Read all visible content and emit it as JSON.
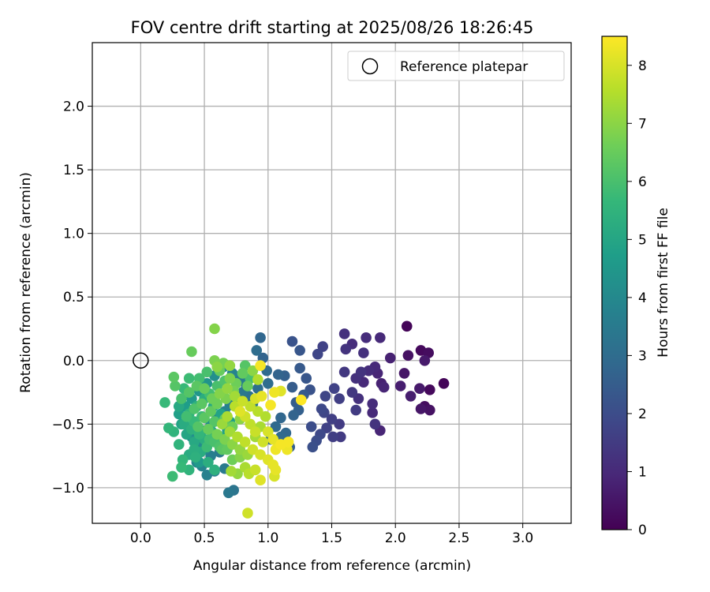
{
  "chart_data": {
    "type": "scatter",
    "title": "FOV centre drift starting at 2025/08/26 18:26:45",
    "xlabel": "Angular distance from reference (arcmin)",
    "ylabel": "Rotation from reference (arcmin)",
    "xlim": [
      -0.38,
      3.38
    ],
    "ylim": [
      -1.28,
      2.5
    ],
    "xticks": [
      0.0,
      0.5,
      1.0,
      1.5,
      2.0,
      2.5,
      3.0
    ],
    "xtick_labels": [
      "0.0",
      "0.5",
      "1.0",
      "1.5",
      "2.0",
      "2.5",
      "3.0"
    ],
    "yticks": [
      -1.0,
      -0.5,
      0.0,
      0.5,
      1.0,
      1.5,
      2.0
    ],
    "ytick_labels": [
      "−1.0",
      "−0.5",
      "0.0",
      "0.5",
      "1.0",
      "1.5",
      "2.0"
    ],
    "grid": true,
    "legend": {
      "placement": "top-right",
      "entries": [
        {
          "label": "Reference platepar",
          "marker": "open-circle",
          "x": 0.0,
          "y": 0.0
        }
      ]
    },
    "colorbar": {
      "label": "Hours from first FF file",
      "min": 0,
      "max": 8.5,
      "ticks": [
        0,
        1,
        2,
        3,
        4,
        5,
        6,
        7,
        8
      ],
      "colormap": "viridis",
      "colormap_stops": [
        "#440154",
        "#482878",
        "#3e4989",
        "#31688e",
        "#26828e",
        "#1f9e89",
        "#35b779",
        "#6ece58",
        "#b5de2b",
        "#fde725"
      ]
    },
    "points": [
      {
        "x": 2.09,
        "y": 0.27,
        "h": 0.1
      },
      {
        "x": 2.2,
        "y": 0.08,
        "h": 0.2
      },
      {
        "x": 2.26,
        "y": 0.06,
        "h": 0.3
      },
      {
        "x": 2.38,
        "y": -0.18,
        "h": 0.1
      },
      {
        "x": 2.27,
        "y": -0.23,
        "h": 0.2
      },
      {
        "x": 2.23,
        "y": -0.36,
        "h": 0.3
      },
      {
        "x": 2.27,
        "y": -0.39,
        "h": 0.4
      },
      {
        "x": 2.2,
        "y": -0.38,
        "h": 0.5
      },
      {
        "x": 2.19,
        "y": -0.22,
        "h": 0.6
      },
      {
        "x": 2.12,
        "y": -0.28,
        "h": 0.7
      },
      {
        "x": 2.07,
        "y": -0.1,
        "h": 0.5
      },
      {
        "x": 2.1,
        "y": 0.04,
        "h": 0.4
      },
      {
        "x": 2.23,
        "y": 0.0,
        "h": 0.6
      },
      {
        "x": 1.96,
        "y": 0.02,
        "h": 0.8
      },
      {
        "x": 1.89,
        "y": -0.18,
        "h": 0.8
      },
      {
        "x": 1.91,
        "y": -0.21,
        "h": 0.9
      },
      {
        "x": 2.04,
        "y": -0.2,
        "h": 0.7
      },
      {
        "x": 1.88,
        "y": 0.18,
        "h": 1.0
      },
      {
        "x": 1.77,
        "y": 0.18,
        "h": 1.1
      },
      {
        "x": 1.6,
        "y": 0.21,
        "h": 1.2
      },
      {
        "x": 1.61,
        "y": 0.09,
        "h": 1.3
      },
      {
        "x": 1.66,
        "y": 0.13,
        "h": 1.1
      },
      {
        "x": 1.75,
        "y": 0.06,
        "h": 1.2
      },
      {
        "x": 1.84,
        "y": -0.05,
        "h": 1.0
      },
      {
        "x": 1.79,
        "y": -0.08,
        "h": 1.1
      },
      {
        "x": 1.73,
        "y": -0.09,
        "h": 1.3
      },
      {
        "x": 1.6,
        "y": -0.09,
        "h": 1.4
      },
      {
        "x": 1.69,
        "y": -0.14,
        "h": 1.2
      },
      {
        "x": 1.75,
        "y": -0.17,
        "h": 1.0
      },
      {
        "x": 1.86,
        "y": -0.1,
        "h": 0.9
      },
      {
        "x": 1.66,
        "y": -0.25,
        "h": 1.4
      },
      {
        "x": 1.71,
        "y": -0.3,
        "h": 1.2
      },
      {
        "x": 1.82,
        "y": -0.34,
        "h": 1.1
      },
      {
        "x": 1.82,
        "y": -0.41,
        "h": 1.0
      },
      {
        "x": 1.84,
        "y": -0.5,
        "h": 1.3
      },
      {
        "x": 1.88,
        "y": -0.55,
        "h": 0.9
      },
      {
        "x": 1.69,
        "y": -0.39,
        "h": 1.5
      },
      {
        "x": 1.56,
        "y": -0.3,
        "h": 1.6
      },
      {
        "x": 1.52,
        "y": -0.22,
        "h": 1.7
      },
      {
        "x": 1.45,
        "y": -0.28,
        "h": 1.8
      },
      {
        "x": 1.42,
        "y": -0.38,
        "h": 1.9
      },
      {
        "x": 1.44,
        "y": -0.41,
        "h": 1.8
      },
      {
        "x": 1.5,
        "y": -0.46,
        "h": 1.6
      },
      {
        "x": 1.56,
        "y": -0.5,
        "h": 1.5
      },
      {
        "x": 1.46,
        "y": -0.53,
        "h": 1.7
      },
      {
        "x": 1.51,
        "y": -0.6,
        "h": 1.6
      },
      {
        "x": 1.57,
        "y": -0.6,
        "h": 1.5
      },
      {
        "x": 1.41,
        "y": -0.58,
        "h": 1.9
      },
      {
        "x": 1.38,
        "y": -0.63,
        "h": 2.0
      },
      {
        "x": 1.35,
        "y": -0.68,
        "h": 2.1
      },
      {
        "x": 1.34,
        "y": -0.52,
        "h": 2.0
      },
      {
        "x": 1.43,
        "y": 0.11,
        "h": 1.7
      },
      {
        "x": 1.39,
        "y": 0.05,
        "h": 1.8
      },
      {
        "x": 1.25,
        "y": 0.08,
        "h": 2.3
      },
      {
        "x": 1.19,
        "y": 0.15,
        "h": 2.2
      },
      {
        "x": 1.25,
        "y": -0.06,
        "h": 2.4
      },
      {
        "x": 1.3,
        "y": -0.14,
        "h": 2.3
      },
      {
        "x": 1.33,
        "y": -0.23,
        "h": 2.2
      },
      {
        "x": 1.19,
        "y": -0.21,
        "h": 2.5
      },
      {
        "x": 1.13,
        "y": -0.12,
        "h": 2.6
      },
      {
        "x": 1.08,
        "y": -0.11,
        "h": 2.7
      },
      {
        "x": 1.28,
        "y": -0.27,
        "h": 2.4
      },
      {
        "x": 1.22,
        "y": -0.33,
        "h": 2.5
      },
      {
        "x": 1.24,
        "y": -0.39,
        "h": 2.6
      },
      {
        "x": 1.2,
        "y": -0.43,
        "h": 2.7
      },
      {
        "x": 1.1,
        "y": -0.45,
        "h": 2.8
      },
      {
        "x": 1.06,
        "y": -0.52,
        "h": 2.9
      },
      {
        "x": 1.14,
        "y": -0.57,
        "h": 2.8
      },
      {
        "x": 1.17,
        "y": -0.68,
        "h": 2.6
      },
      {
        "x": 0.94,
        "y": 0.18,
        "h": 2.8
      },
      {
        "x": 0.91,
        "y": 0.08,
        "h": 3.0
      },
      {
        "x": 0.96,
        "y": 0.02,
        "h": 2.7
      },
      {
        "x": 0.99,
        "y": -0.08,
        "h": 2.9
      },
      {
        "x": 1.0,
        "y": -0.18,
        "h": 3.0
      },
      {
        "x": 0.92,
        "y": -0.22,
        "h": 3.1
      },
      {
        "x": 0.85,
        "y": -0.28,
        "h": 3.2
      },
      {
        "x": 0.88,
        "y": -0.34,
        "h": 3.3
      },
      {
        "x": 1.02,
        "y": -0.62,
        "h": 3.0
      },
      {
        "x": 1.1,
        "y": -0.6,
        "h": 2.9
      },
      {
        "x": 0.73,
        "y": -1.02,
        "h": 3.3
      },
      {
        "x": 0.69,
        "y": -1.04,
        "h": 3.4
      },
      {
        "x": 0.66,
        "y": -0.85,
        "h": 3.5
      },
      {
        "x": 0.58,
        "y": -0.87,
        "h": 3.6
      },
      {
        "x": 0.52,
        "y": -0.9,
        "h": 3.7
      },
      {
        "x": 0.48,
        "y": -0.83,
        "h": 3.8
      },
      {
        "x": 0.44,
        "y": -0.8,
        "h": 3.9
      },
      {
        "x": 0.55,
        "y": -0.75,
        "h": 3.6
      },
      {
        "x": 0.62,
        "y": -0.72,
        "h": 3.4
      },
      {
        "x": 0.5,
        "y": -0.7,
        "h": 4.0
      },
      {
        "x": 0.45,
        "y": -0.65,
        "h": 4.1
      },
      {
        "x": 0.4,
        "y": -0.6,
        "h": 4.2
      },
      {
        "x": 0.48,
        "y": -0.55,
        "h": 4.3
      },
      {
        "x": 0.55,
        "y": -0.5,
        "h": 4.1
      },
      {
        "x": 0.6,
        "y": -0.45,
        "h": 3.9
      },
      {
        "x": 0.66,
        "y": -0.4,
        "h": 3.8
      },
      {
        "x": 0.7,
        "y": -0.35,
        "h": 3.7
      },
      {
        "x": 0.75,
        "y": -0.3,
        "h": 3.5
      },
      {
        "x": 0.8,
        "y": -0.25,
        "h": 3.4
      },
      {
        "x": 0.83,
        "y": -0.2,
        "h": 3.3
      },
      {
        "x": 0.78,
        "y": -0.15,
        "h": 3.6
      },
      {
        "x": 0.72,
        "y": -0.1,
        "h": 3.8
      },
      {
        "x": 0.65,
        "y": -0.05,
        "h": 4.0
      },
      {
        "x": 0.58,
        "y": -0.12,
        "h": 4.2
      },
      {
        "x": 0.52,
        "y": -0.18,
        "h": 4.4
      },
      {
        "x": 0.46,
        "y": -0.24,
        "h": 4.5
      },
      {
        "x": 0.4,
        "y": -0.3,
        "h": 4.6
      },
      {
        "x": 0.35,
        "y": -0.36,
        "h": 4.7
      },
      {
        "x": 0.3,
        "y": -0.42,
        "h": 4.8
      },
      {
        "x": 0.32,
        "y": -0.5,
        "h": 4.9
      },
      {
        "x": 0.36,
        "y": -0.58,
        "h": 5.0
      },
      {
        "x": 0.42,
        "y": -0.64,
        "h": 5.1
      },
      {
        "x": 0.47,
        "y": -0.72,
        "h": 5.2
      },
      {
        "x": 0.53,
        "y": -0.8,
        "h": 5.3
      },
      {
        "x": 0.58,
        "y": -0.86,
        "h": 5.4
      },
      {
        "x": 0.26,
        "y": -0.56,
        "h": 5.5
      },
      {
        "x": 0.22,
        "y": -0.53,
        "h": 5.6
      },
      {
        "x": 0.19,
        "y": -0.33,
        "h": 5.7
      },
      {
        "x": 0.3,
        "y": -0.66,
        "h": 5.5
      },
      {
        "x": 0.33,
        "y": -0.78,
        "h": 5.6
      },
      {
        "x": 0.32,
        "y": -0.84,
        "h": 5.7
      },
      {
        "x": 0.25,
        "y": -0.91,
        "h": 5.8
      },
      {
        "x": 0.38,
        "y": -0.86,
        "h": 5.5
      },
      {
        "x": 0.43,
        "y": -0.76,
        "h": 5.4
      },
      {
        "x": 0.5,
        "y": -0.62,
        "h": 5.3
      },
      {
        "x": 0.56,
        "y": -0.56,
        "h": 5.2
      },
      {
        "x": 0.62,
        "y": -0.6,
        "h": 5.0
      },
      {
        "x": 0.68,
        "y": -0.55,
        "h": 4.8
      },
      {
        "x": 0.7,
        "y": -0.48,
        "h": 4.7
      },
      {
        "x": 0.63,
        "y": -0.42,
        "h": 4.9
      },
      {
        "x": 0.57,
        "y": -0.36,
        "h": 5.1
      },
      {
        "x": 0.5,
        "y": -0.3,
        "h": 5.3
      },
      {
        "x": 0.44,
        "y": -0.36,
        "h": 5.4
      },
      {
        "x": 0.38,
        "y": -0.42,
        "h": 5.6
      },
      {
        "x": 0.42,
        "y": -0.48,
        "h": 5.7
      },
      {
        "x": 0.48,
        "y": -0.44,
        "h": 5.8
      },
      {
        "x": 0.54,
        "y": -0.26,
        "h": 5.9
      },
      {
        "x": 0.6,
        "y": -0.2,
        "h": 6.0
      },
      {
        "x": 0.66,
        "y": -0.16,
        "h": 6.1
      },
      {
        "x": 0.52,
        "y": -0.09,
        "h": 6.0
      },
      {
        "x": 0.46,
        "y": -0.14,
        "h": 5.9
      },
      {
        "x": 0.38,
        "y": -0.14,
        "h": 5.8
      },
      {
        "x": 0.34,
        "y": -0.22,
        "h": 5.7
      },
      {
        "x": 0.38,
        "y": -0.25,
        "h": 6.2
      },
      {
        "x": 0.26,
        "y": -0.13,
        "h": 6.3
      },
      {
        "x": 0.27,
        "y": -0.2,
        "h": 6.2
      },
      {
        "x": 0.4,
        "y": 0.07,
        "h": 6.5
      },
      {
        "x": 0.58,
        "y": 0.25,
        "h": 6.9
      },
      {
        "x": 0.58,
        "y": 0.0,
        "h": 6.8
      },
      {
        "x": 0.6,
        "y": -0.05,
        "h": 7.0
      },
      {
        "x": 0.65,
        "y": -0.02,
        "h": 6.7
      },
      {
        "x": 0.7,
        "y": -0.04,
        "h": 7.1
      },
      {
        "x": 0.75,
        "y": -0.18,
        "h": 6.6
      },
      {
        "x": 0.8,
        "y": -0.1,
        "h": 6.4
      },
      {
        "x": 0.84,
        "y": -0.2,
        "h": 6.5
      },
      {
        "x": 0.73,
        "y": -0.24,
        "h": 6.7
      },
      {
        "x": 0.67,
        "y": -0.3,
        "h": 6.8
      },
      {
        "x": 0.6,
        "y": -0.34,
        "h": 6.6
      },
      {
        "x": 0.55,
        "y": -0.4,
        "h": 6.4
      },
      {
        "x": 0.5,
        "y": -0.45,
        "h": 6.3
      },
      {
        "x": 0.45,
        "y": -0.52,
        "h": 6.2
      },
      {
        "x": 0.53,
        "y": -0.54,
        "h": 6.5
      },
      {
        "x": 0.6,
        "y": -0.58,
        "h": 6.7
      },
      {
        "x": 0.66,
        "y": -0.62,
        "h": 6.8
      },
      {
        "x": 0.72,
        "y": -0.66,
        "h": 7.0
      },
      {
        "x": 0.78,
        "y": -0.7,
        "h": 7.1
      },
      {
        "x": 0.84,
        "y": -0.74,
        "h": 7.2
      },
      {
        "x": 0.9,
        "y": -0.6,
        "h": 7.3
      },
      {
        "x": 0.94,
        "y": -0.52,
        "h": 7.4
      },
      {
        "x": 0.98,
        "y": -0.44,
        "h": 7.5
      },
      {
        "x": 0.92,
        "y": -0.4,
        "h": 7.6
      },
      {
        "x": 0.86,
        "y": -0.36,
        "h": 7.7
      },
      {
        "x": 0.8,
        "y": -0.32,
        "h": 7.8
      },
      {
        "x": 0.74,
        "y": -0.36,
        "h": 7.6
      },
      {
        "x": 0.68,
        "y": -0.44,
        "h": 7.4
      },
      {
        "x": 0.64,
        "y": -0.5,
        "h": 7.2
      },
      {
        "x": 0.7,
        "y": -0.56,
        "h": 7.3
      },
      {
        "x": 0.76,
        "y": -0.6,
        "h": 7.5
      },
      {
        "x": 0.82,
        "y": -0.64,
        "h": 7.7
      },
      {
        "x": 0.88,
        "y": -0.7,
        "h": 7.9
      },
      {
        "x": 0.94,
        "y": -0.74,
        "h": 8.0
      },
      {
        "x": 1.0,
        "y": -0.78,
        "h": 8.1
      },
      {
        "x": 1.04,
        "y": -0.82,
        "h": 8.2
      },
      {
        "x": 1.06,
        "y": -0.7,
        "h": 8.3
      },
      {
        "x": 1.1,
        "y": -0.66,
        "h": 8.4
      },
      {
        "x": 1.15,
        "y": -0.7,
        "h": 8.3
      },
      {
        "x": 1.16,
        "y": -0.64,
        "h": 8.4
      },
      {
        "x": 1.04,
        "y": -0.62,
        "h": 8.2
      },
      {
        "x": 1.0,
        "y": -0.56,
        "h": 8.0
      },
      {
        "x": 0.96,
        "y": -0.64,
        "h": 7.9
      },
      {
        "x": 0.9,
        "y": -0.56,
        "h": 7.8
      },
      {
        "x": 0.86,
        "y": -0.5,
        "h": 7.7
      },
      {
        "x": 0.82,
        "y": -0.44,
        "h": 7.9
      },
      {
        "x": 0.78,
        "y": -0.4,
        "h": 8.1
      },
      {
        "x": 0.9,
        "y": -0.3,
        "h": 8.0
      },
      {
        "x": 0.95,
        "y": -0.28,
        "h": 8.2
      },
      {
        "x": 1.05,
        "y": -0.25,
        "h": 8.3
      },
      {
        "x": 1.1,
        "y": -0.24,
        "h": 8.1
      },
      {
        "x": 1.02,
        "y": -0.35,
        "h": 8.4
      },
      {
        "x": 1.26,
        "y": -0.31,
        "h": 8.5
      },
      {
        "x": 0.94,
        "y": -0.04,
        "h": 8.4
      },
      {
        "x": 0.92,
        "y": -0.15,
        "h": 7.5
      },
      {
        "x": 0.88,
        "y": -0.08,
        "h": 7.0
      },
      {
        "x": 0.71,
        "y": -0.87,
        "h": 7.3
      },
      {
        "x": 0.76,
        "y": -0.89,
        "h": 7.1
      },
      {
        "x": 0.85,
        "y": -0.89,
        "h": 7.6
      },
      {
        "x": 0.9,
        "y": -0.86,
        "h": 7.8
      },
      {
        "x": 0.94,
        "y": -0.94,
        "h": 8.1
      },
      {
        "x": 1.05,
        "y": -0.91,
        "h": 8.0
      },
      {
        "x": 1.06,
        "y": -0.86,
        "h": 8.2
      },
      {
        "x": 0.84,
        "y": -1.2,
        "h": 7.9
      },
      {
        "x": 0.82,
        "y": -0.84,
        "h": 7.4
      },
      {
        "x": 0.78,
        "y": -0.76,
        "h": 6.9
      },
      {
        "x": 0.72,
        "y": -0.78,
        "h": 6.6
      },
      {
        "x": 0.64,
        "y": -0.7,
        "h": 6.3
      },
      {
        "x": 0.58,
        "y": -0.64,
        "h": 6.0
      },
      {
        "x": 0.52,
        "y": -0.68,
        "h": 5.8
      },
      {
        "x": 0.46,
        "y": -0.58,
        "h": 5.6
      },
      {
        "x": 0.4,
        "y": -0.54,
        "h": 5.4
      },
      {
        "x": 0.34,
        "y": -0.5,
        "h": 5.2
      },
      {
        "x": 0.3,
        "y": -0.36,
        "h": 5.1
      },
      {
        "x": 0.32,
        "y": -0.3,
        "h": 6.0
      },
      {
        "x": 0.44,
        "y": -0.2,
        "h": 6.3
      },
      {
        "x": 0.5,
        "y": -0.22,
        "h": 6.5
      },
      {
        "x": 0.56,
        "y": -0.3,
        "h": 6.6
      },
      {
        "x": 0.62,
        "y": -0.26,
        "h": 6.9
      },
      {
        "x": 0.68,
        "y": -0.22,
        "h": 7.1
      },
      {
        "x": 0.74,
        "y": -0.28,
        "h": 7.3
      },
      {
        "x": 0.7,
        "y": -0.14,
        "h": 6.8
      },
      {
        "x": 0.62,
        "y": -0.08,
        "h": 6.5
      },
      {
        "x": 0.82,
        "y": -0.04,
        "h": 6.2
      },
      {
        "x": 0.86,
        "y": -0.14,
        "h": 6.0
      },
      {
        "x": 0.78,
        "y": -0.46,
        "h": 7.0
      },
      {
        "x": 0.72,
        "y": -0.52,
        "h": 6.6
      },
      {
        "x": 0.66,
        "y": -0.46,
        "h": 6.4
      },
      {
        "x": 0.58,
        "y": -0.48,
        "h": 6.2
      },
      {
        "x": 0.54,
        "y": -0.62,
        "h": 5.9
      },
      {
        "x": 0.62,
        "y": -0.68,
        "h": 6.1
      },
      {
        "x": 0.68,
        "y": -0.7,
        "h": 6.4
      },
      {
        "x": 0.42,
        "y": -0.7,
        "h": 5.3
      },
      {
        "x": 0.38,
        "y": -0.74,
        "h": 5.2
      },
      {
        "x": 0.46,
        "y": -0.8,
        "h": 4.6
      },
      {
        "x": 0.36,
        "y": -0.44,
        "h": 5.9
      },
      {
        "x": 0.42,
        "y": -0.38,
        "h": 6.1
      },
      {
        "x": 0.48,
        "y": -0.34,
        "h": 6.3
      }
    ]
  }
}
